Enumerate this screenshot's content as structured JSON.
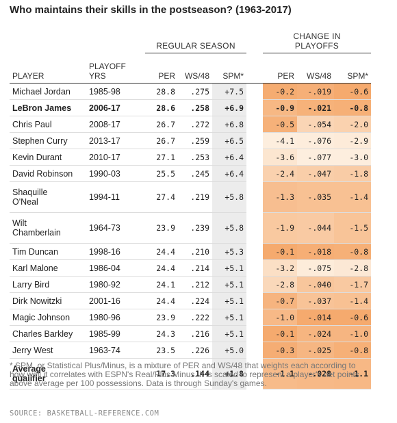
{
  "title": "Who maintains their skills in the postseason? (1963-2017)",
  "column_groups": [
    "REGULAR SEASON",
    "CHANGE IN PLAYOFFS"
  ],
  "columns": [
    "PLAYER",
    "PLAYOFF YRS",
    "PER",
    "WS/48",
    "SPM*",
    "PER",
    "WS/48",
    "SPM*"
  ],
  "rows": [
    {
      "cells": [
        "Michael Jordan",
        "1985-98",
        "28.8",
        ".275",
        "+7.5",
        "-0.2",
        "-.019",
        "-0.6"
      ]
    },
    {
      "cells": [
        "LeBron James",
        "2006-17",
        "28.6",
        ".258",
        "+6.9",
        "-0.9",
        "-.021",
        "-0.8"
      ],
      "bold": true
    },
    {
      "cells": [
        "Chris Paul",
        "2008-17",
        "26.7",
        ".272",
        "+6.8",
        "-0.5",
        "-.054",
        "-2.0"
      ]
    },
    {
      "cells": [
        "Stephen Curry",
        "2013-17",
        "26.7",
        ".259",
        "+6.5",
        "-4.1",
        "-.076",
        "-2.9"
      ]
    },
    {
      "cells": [
        "Kevin Durant",
        "2010-17",
        "27.1",
        ".253",
        "+6.4",
        "-3.6",
        "-.077",
        "-3.0"
      ]
    },
    {
      "cells": [
        "David Robinson",
        "1990-03",
        "25.5",
        ".245",
        "+6.4",
        "-2.4",
        "-.047",
        "-1.8"
      ]
    },
    {
      "cells": [
        "Shaquille O'Neal",
        "1994-11",
        "27.4",
        ".219",
        "+5.8",
        "-1.3",
        "-.035",
        "-1.4"
      ]
    },
    {
      "cells": [
        "Wilt Chamberlain",
        "1964-73",
        "23.9",
        ".239",
        "+5.8",
        "-1.9",
        "-.044",
        "-1.5"
      ]
    },
    {
      "cells": [
        "Tim Duncan",
        "1998-16",
        "24.4",
        ".210",
        "+5.3",
        "-0.1",
        "-.018",
        "-0.8"
      ]
    },
    {
      "cells": [
        "Karl Malone",
        "1986-04",
        "24.4",
        ".214",
        "+5.1",
        "-3.2",
        "-.075",
        "-2.8"
      ]
    },
    {
      "cells": [
        "Larry Bird",
        "1980-92",
        "24.1",
        ".212",
        "+5.1",
        "-2.8",
        "-.040",
        "-1.7"
      ]
    },
    {
      "cells": [
        "Dirk Nowitzki",
        "2001-16",
        "24.4",
        ".224",
        "+5.1",
        "-0.7",
        "-.037",
        "-1.4"
      ]
    },
    {
      "cells": [
        "Magic Johnson",
        "1980-96",
        "23.9",
        ".222",
        "+5.1",
        "-1.0",
        "-.014",
        "-0.6"
      ]
    },
    {
      "cells": [
        "Charles Barkley",
        "1985-99",
        "24.3",
        ".216",
        "+5.1",
        "-0.1",
        "-.024",
        "-1.0"
      ]
    },
    {
      "cells": [
        "Jerry West",
        "1963-74",
        "23.5",
        ".226",
        "+5.0",
        "-0.3",
        "-.025",
        "-0.8"
      ]
    },
    {
      "cells": [
        "Average qualifier",
        null,
        "17.3",
        ".144",
        "+1.8",
        "-1.1",
        "-.028",
        "-1.1"
      ],
      "bold": true
    }
  ],
  "footnote": "* SPM, or Statistical Plus/Minus, is a mixture of PER and WS/48 that weights each according to how well it correlates with ESPN's Real/Plus Minus. It is scaled to represent a player's net points above average per 100 possessions. Data is through Sunday's games.",
  "source": "SOURCE: BASKETBALL-REFERENCE.COM"
}
